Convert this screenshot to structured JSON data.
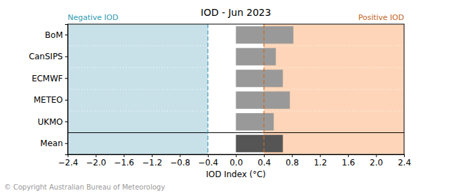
{
  "chart_data": {
    "type": "bar",
    "orientation": "horizontal",
    "title": "IOD - Jun 2023",
    "x_label": "IOD Index (°C)",
    "caption": "© Copyright Australian Bureau of Meteorology",
    "annotations": [
      "Negative IOD",
      "Positive IOD"
    ],
    "thresholds": [
      -0.4,
      0.4
    ],
    "categories": [
      "BoM",
      "CanSIPS",
      "ECMWF",
      "METEO",
      "UKMO",
      "Mean"
    ],
    "values": [
      0.82,
      0.57,
      0.67,
      0.77,
      0.54,
      0.67
    ],
    "colors": [
      "#999999",
      "#999999",
      "#999999",
      "#999999",
      "#999999",
      "#555555"
    ],
    "xlim": [
      -2.4,
      2.4
    ],
    "xticks": [
      {
        "value": -2.4,
        "label": "−2.4"
      },
      {
        "value": -2.0,
        "label": "−2.0"
      },
      {
        "value": -1.6,
        "label": "−1.6"
      },
      {
        "value": -1.2,
        "label": "−1.2"
      },
      {
        "value": -0.8,
        "label": "−0.8"
      },
      {
        "value": -0.4,
        "label": "−0.4"
      },
      {
        "value": 0.0,
        "label": "0.0"
      },
      {
        "value": 0.4,
        "label": "0.4"
      },
      {
        "value": 0.8,
        "label": "0.8"
      },
      {
        "value": 1.2,
        "label": "1.2"
      },
      {
        "value": 1.6,
        "label": "1.6"
      },
      {
        "value": 2.0,
        "label": "2.0"
      },
      {
        "value": 2.4,
        "label": "2.4"
      }
    ],
    "grid": true
  }
}
